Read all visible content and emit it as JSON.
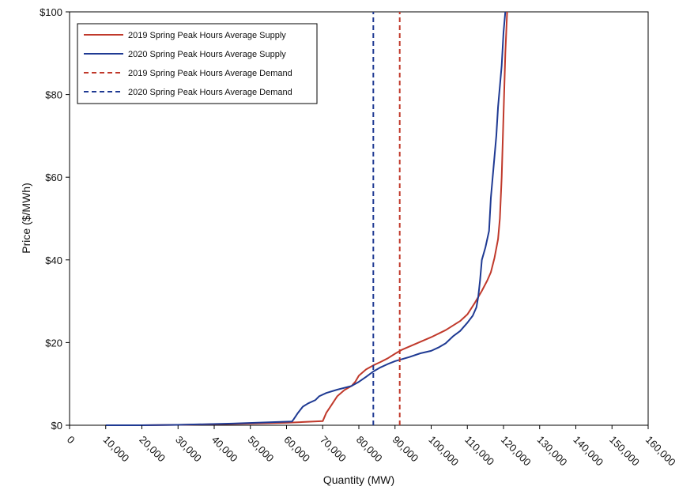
{
  "chart_data": {
    "type": "line",
    "title": "",
    "xlabel": "Quantity (MW)",
    "ylabel": "Price ($/MWh)",
    "xlim": [
      0,
      160000
    ],
    "ylim": [
      0,
      100
    ],
    "x_ticks": [
      0,
      10000,
      20000,
      30000,
      40000,
      50000,
      60000,
      70000,
      80000,
      90000,
      100000,
      110000,
      120000,
      130000,
      140000,
      150000,
      160000
    ],
    "x_tick_labels": [
      "0",
      "10,000",
      "20,000",
      "30,000",
      "40,000",
      "50,000",
      "60,000",
      "70,000",
      "80,000",
      "90,000",
      "100,000",
      "110,000",
      "120,000",
      "130,000",
      "140,000",
      "150,000",
      "160,000"
    ],
    "y_ticks": [
      0,
      20,
      40,
      60,
      80,
      100
    ],
    "y_tick_labels": [
      "$0",
      "$20",
      "$40",
      "$60",
      "$80",
      "$100"
    ],
    "grid": false,
    "legend_position": "top-left",
    "series": [
      {
        "name": "2019 Spring Peak Hours Average Supply",
        "color": "#c0392b",
        "dash": "solid",
        "points": [
          [
            10000,
            0
          ],
          [
            20000,
            0
          ],
          [
            30000,
            0.1
          ],
          [
            45000,
            0.3
          ],
          [
            60000,
            0.6
          ],
          [
            70000,
            1
          ],
          [
            71000,
            3
          ],
          [
            72500,
            5
          ],
          [
            74000,
            7
          ],
          [
            76000,
            8.5
          ],
          [
            78000,
            9.5
          ],
          [
            79000,
            10.5
          ],
          [
            80000,
            12
          ],
          [
            82000,
            13.5
          ],
          [
            84000,
            14.5
          ],
          [
            86000,
            15.3
          ],
          [
            88000,
            16.2
          ],
          [
            90000,
            17.3
          ],
          [
            92000,
            18.3
          ],
          [
            96000,
            19.8
          ],
          [
            100000,
            21.3
          ],
          [
            104000,
            23
          ],
          [
            108000,
            25.2
          ],
          [
            110000,
            26.8
          ],
          [
            112000,
            29.5
          ],
          [
            114000,
            32.5
          ],
          [
            115500,
            35
          ],
          [
            116500,
            37
          ],
          [
            117500,
            40.5
          ],
          [
            118500,
            45
          ],
          [
            119000,
            50
          ],
          [
            119500,
            60
          ],
          [
            120000,
            75
          ],
          [
            120500,
            90
          ],
          [
            121000,
            100
          ]
        ]
      },
      {
        "name": "2020 Spring Peak Hours Average Supply",
        "color": "#1f3a93",
        "dash": "solid",
        "points": [
          [
            10000,
            0
          ],
          [
            20000,
            0
          ],
          [
            30000,
            0.1
          ],
          [
            45000,
            0.4
          ],
          [
            61500,
            0.9
          ],
          [
            62000,
            1.5
          ],
          [
            63000,
            2.8
          ],
          [
            64500,
            4.5
          ],
          [
            66000,
            5.3
          ],
          [
            68000,
            6.1
          ],
          [
            69000,
            7
          ],
          [
            71000,
            7.8
          ],
          [
            74000,
            8.6
          ],
          [
            78000,
            9.5
          ],
          [
            80000,
            10.5
          ],
          [
            82000,
            11.7
          ],
          [
            84000,
            13
          ],
          [
            86000,
            14
          ],
          [
            88000,
            14.8
          ],
          [
            90000,
            15.5
          ],
          [
            94000,
            16.5
          ],
          [
            97000,
            17.4
          ],
          [
            100000,
            18
          ],
          [
            102000,
            18.8
          ],
          [
            104000,
            19.8
          ],
          [
            106000,
            21.5
          ],
          [
            108000,
            22.8
          ],
          [
            110000,
            24.8
          ],
          [
            111500,
            26.5
          ],
          [
            112500,
            28.5
          ],
          [
            113000,
            31
          ],
          [
            113500,
            35
          ],
          [
            114000,
            40
          ],
          [
            115000,
            43
          ],
          [
            116000,
            47
          ],
          [
            116500,
            55
          ],
          [
            117000,
            60
          ],
          [
            117500,
            65
          ],
          [
            118000,
            70
          ],
          [
            118500,
            77
          ],
          [
            119500,
            87
          ],
          [
            120000,
            95
          ],
          [
            120500,
            100
          ]
        ]
      },
      {
        "name": "2019 Spring Peak Hours Average Demand",
        "color": "#c0392b",
        "dash": "dashed",
        "points": [
          [
            91300,
            0
          ],
          [
            91300,
            100
          ]
        ]
      },
      {
        "name": "2020 Spring Peak Hours Average Demand",
        "color": "#1f3a93",
        "dash": "dashed",
        "points": [
          [
            84000,
            0
          ],
          [
            84000,
            100
          ]
        ]
      }
    ]
  }
}
